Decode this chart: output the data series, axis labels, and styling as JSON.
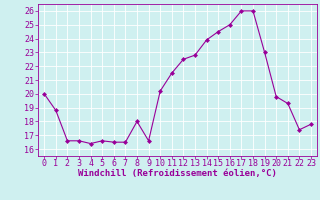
{
  "x": [
    0,
    1,
    2,
    3,
    4,
    5,
    6,
    7,
    8,
    9,
    10,
    11,
    12,
    13,
    14,
    15,
    16,
    17,
    18,
    19,
    20,
    21,
    22,
    23
  ],
  "y": [
    20,
    18.8,
    16.6,
    16.6,
    16.4,
    16.6,
    16.5,
    16.5,
    18.0,
    16.6,
    20.2,
    21.5,
    22.5,
    22.8,
    23.9,
    24.5,
    25.0,
    26.0,
    26.0,
    23.0,
    19.8,
    19.3,
    17.4,
    17.8
  ],
  "line_color": "#990099",
  "marker": "D",
  "marker_size": 2,
  "xlabel": "Windchill (Refroidissement éolien,°C)",
  "xlim": [
    -0.5,
    23.5
  ],
  "ylim": [
    15.5,
    26.5
  ],
  "yticks": [
    16,
    17,
    18,
    19,
    20,
    21,
    22,
    23,
    24,
    25,
    26
  ],
  "xticks": [
    0,
    1,
    2,
    3,
    4,
    5,
    6,
    7,
    8,
    9,
    10,
    11,
    12,
    13,
    14,
    15,
    16,
    17,
    18,
    19,
    20,
    21,
    22,
    23
  ],
  "bg_color": "#cff0f0",
  "grid_color": "#ffffff",
  "text_color": "#990099",
  "tick_fontsize": 6,
  "xlabel_fontsize": 6.5
}
